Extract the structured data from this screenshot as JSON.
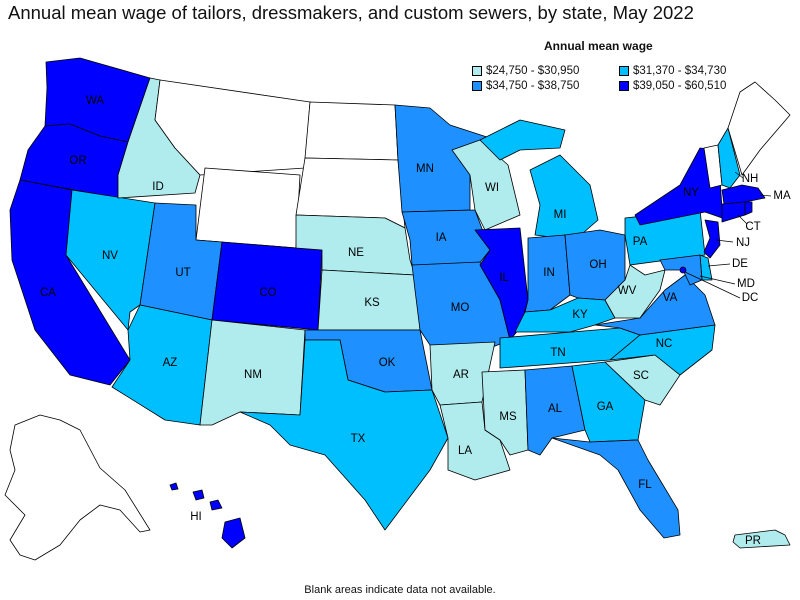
{
  "title": "Annual mean wage of tailors, dressmakers, and custom sewers, by state, May 2022",
  "legend": {
    "title": "Annual mean wage",
    "items": [
      {
        "range": "$24,750 - $30,950",
        "color": "#b0ecee"
      },
      {
        "range": "$31,370 - $34,730",
        "color": "#00bfff"
      },
      {
        "range": "$34,750 - $38,750",
        "color": "#1e90ff"
      },
      {
        "range": "$39,050 - $60,510",
        "color": "#0000ff"
      }
    ]
  },
  "footnote": "Blank areas indicate data not available.",
  "colors": {
    "no_data": "#ffffff",
    "tier1": "#b0ecee",
    "tier2": "#00bfff",
    "tier3": "#1e90ff",
    "tier4": "#0000ff"
  },
  "states": {
    "WA": "tier4",
    "OR": "tier4",
    "CA": "tier4",
    "NV": "tier2",
    "ID": "tier1",
    "MT": "no_data",
    "WY": "no_data",
    "UT": "tier3",
    "AZ": "tier2",
    "CO": "tier4",
    "NM": "tier1",
    "ND": "no_data",
    "SD": "no_data",
    "NE": "tier1",
    "KS": "tier1",
    "OK": "tier3",
    "TX": "tier2",
    "MN": "tier3",
    "IA": "tier3",
    "MO": "tier3",
    "AR": "tier1",
    "LA": "tier1",
    "WI": "tier1",
    "IL": "tier4",
    "MI": "tier2",
    "IN": "tier3",
    "OH": "tier3",
    "KY": "tier2",
    "TN": "tier2",
    "MS": "tier1",
    "AL": "tier3",
    "GA": "tier2",
    "FL": "tier3",
    "SC": "tier1",
    "NC": "tier2",
    "VA": "tier3",
    "WV": "tier1",
    "PA": "tier2",
    "NY": "tier4",
    "VT": "no_data",
    "NH": "tier2",
    "ME": "no_data",
    "MA": "tier4",
    "CT": "tier4",
    "RI": "tier4",
    "NJ": "tier4",
    "DE": "tier2",
    "MD": "tier3",
    "DC": "tier4",
    "AK": "no_data",
    "HI": "tier4",
    "PR": "tier1"
  }
}
